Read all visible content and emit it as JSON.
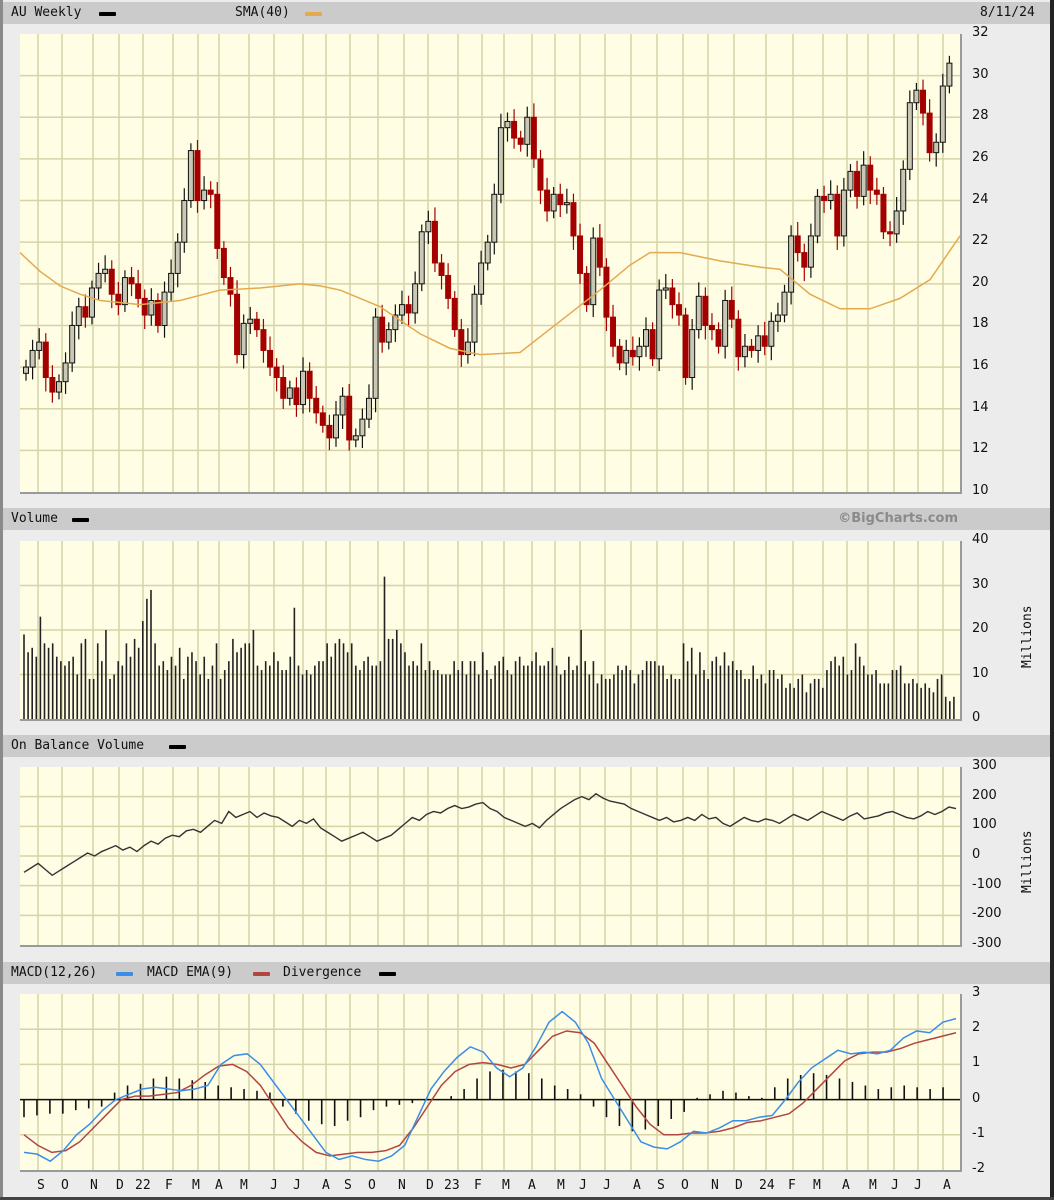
{
  "header": {
    "symbol_label": "AU Weekly",
    "sma_label": "SMA(40)",
    "date": "8/11/24",
    "volume_label": "Volume",
    "copyright": "©BigCharts.com",
    "obv_label": "On Balance Volume",
    "macd_label": "MACD(12,26)",
    "macd_ema_label": "MACD EMA(9)",
    "divergence_label": "Divergence"
  },
  "colors": {
    "plot_bg": "#fffde4",
    "grid": "#d6d4a6",
    "up_candle": "#c8c8b4",
    "down_candle": "#a50000",
    "sma": "#e3aa4f",
    "macd": "#3a8ee6",
    "macd_ema": "#b2453f",
    "divergence": "#000000",
    "header_bg": "#cbcbcb"
  },
  "axes": {
    "price_ticks": [
      "32",
      "30",
      "28",
      "26",
      "24",
      "22",
      "20",
      "18",
      "16",
      "14",
      "12",
      "10"
    ],
    "volume_ticks": [
      "40",
      "30",
      "20",
      "10",
      "0"
    ],
    "volume_unit": "Millions",
    "obv_ticks": [
      "300",
      "200",
      "100",
      "0",
      "-100",
      "-200",
      "-300"
    ],
    "obv_unit": "Millions",
    "macd_ticks": [
      "3",
      "2",
      "1",
      "0",
      "-1",
      "-2"
    ],
    "x_labels": [
      "S",
      "O",
      "N",
      "D",
      "22",
      "F",
      "M",
      "A",
      "M",
      "J",
      "J",
      "A",
      "S",
      "O",
      "N",
      "D",
      "23",
      "F",
      "M",
      "A",
      "M",
      "J",
      "J",
      "A",
      "S",
      "O",
      "N",
      "D",
      "24",
      "F",
      "M",
      "A",
      "M",
      "J",
      "J",
      "A"
    ]
  },
  "chart_data": [
    {
      "type": "candlestick",
      "title": "AU Weekly",
      "ylim": [
        10,
        32
      ],
      "grid": true,
      "legend": [
        "AU Weekly",
        "SMA(40)"
      ],
      "x_range": "Aug 2021 – Aug 2024 (weekly)",
      "close_series_approx": [
        16.0,
        16.8,
        17.2,
        15.5,
        14.8,
        15.3,
        16.2,
        18.0,
        18.9,
        18.4,
        19.8,
        20.5,
        20.7,
        19.5,
        19.0,
        20.3,
        20.0,
        19.3,
        18.5,
        19.2,
        18.0,
        19.6,
        20.5,
        22.0,
        24.0,
        26.4,
        24.0,
        24.5,
        24.3,
        21.7,
        20.3,
        19.5,
        16.6,
        18.1,
        18.3,
        17.8,
        16.8,
        16.0,
        15.5,
        14.5,
        15.0,
        14.2,
        15.8,
        14.5,
        13.8,
        13.2,
        12.6,
        13.7,
        14.6,
        12.5,
        12.7,
        13.5,
        14.5,
        18.4,
        17.2,
        17.8,
        18.5,
        19.0,
        18.6,
        20.0,
        22.5,
        23.0,
        21.0,
        20.4,
        19.3,
        17.8,
        16.6,
        17.2,
        19.5,
        21.0,
        22.0,
        24.3,
        27.5,
        27.8,
        27.0,
        26.7,
        28.0,
        26.0,
        24.5,
        23.5,
        24.3,
        23.8,
        23.9,
        22.3,
        20.5,
        19.0,
        22.2,
        20.8,
        18.4,
        17.0,
        16.2,
        16.8,
        16.5,
        17.0,
        17.8,
        16.4,
        19.7,
        19.8,
        19.0,
        18.5,
        15.5,
        17.8,
        19.4,
        18.0,
        17.8,
        17.0,
        19.2,
        18.3,
        16.5,
        17.0,
        16.8,
        17.5,
        17.0,
        18.2,
        18.5,
        19.6,
        22.3,
        21.5,
        20.8,
        22.3,
        24.2,
        24.0,
        24.3,
        22.3,
        24.5,
        25.4,
        24.2,
        25.7,
        24.5,
        24.3,
        22.5,
        22.4,
        23.5,
        25.5,
        28.7,
        29.3,
        28.2,
        26.3,
        26.8,
        29.5,
        30.6
      ],
      "sma40_approx_points": [
        [
          0,
          21.5
        ],
        [
          20,
          20.6
        ],
        [
          40,
          19.9
        ],
        [
          60,
          19.5
        ],
        [
          80,
          19.2
        ],
        [
          120,
          19.0
        ],
        [
          160,
          19.2
        ],
        [
          200,
          19.7
        ],
        [
          240,
          19.8
        ],
        [
          280,
          20.0
        ],
        [
          300,
          19.9
        ],
        [
          320,
          19.7
        ],
        [
          360,
          18.9
        ],
        [
          400,
          17.6
        ],
        [
          430,
          16.9
        ],
        [
          460,
          16.6
        ],
        [
          500,
          16.7
        ],
        [
          540,
          18.2
        ],
        [
          580,
          19.7
        ],
        [
          610,
          20.9
        ],
        [
          630,
          21.5
        ],
        [
          660,
          21.5
        ],
        [
          700,
          21.1
        ],
        [
          740,
          20.8
        ],
        [
          760,
          20.7
        ],
        [
          790,
          19.5
        ],
        [
          820,
          18.8
        ],
        [
          850,
          18.8
        ],
        [
          880,
          19.3
        ],
        [
          910,
          20.2
        ],
        [
          940,
          22.3
        ]
      ]
    },
    {
      "type": "bar",
      "title": "Volume",
      "ylabel": "Millions",
      "ylim": [
        0,
        40
      ],
      "values_approx": [
        19,
        15,
        16,
        14,
        23,
        17,
        16,
        17,
        14,
        13,
        12,
        13,
        14,
        10,
        17,
        18,
        9,
        9,
        17,
        13,
        20,
        9,
        10,
        13,
        12,
        17,
        14,
        18,
        16,
        22,
        27,
        29,
        17,
        12,
        13,
        11,
        14,
        12,
        16,
        9,
        14,
        15,
        13,
        10,
        14,
        9,
        12,
        17,
        9,
        11,
        13,
        18,
        15,
        16,
        17,
        17,
        20,
        12,
        11,
        13,
        12,
        15,
        13,
        11,
        11,
        14,
        25,
        12,
        10,
        11,
        10,
        12,
        13,
        13,
        17,
        14,
        17,
        18,
        17,
        15,
        17,
        12,
        11,
        13,
        14,
        12,
        12,
        13,
        32,
        18,
        18,
        20,
        17,
        15,
        12,
        13,
        12,
        17,
        11,
        13,
        11,
        11,
        10,
        10,
        10,
        13,
        11,
        13,
        10,
        13,
        13,
        10,
        15,
        11,
        9,
        12,
        13,
        14,
        11,
        10,
        13,
        14,
        12,
        12,
        13,
        15,
        12,
        12,
        13,
        16,
        12,
        10,
        11,
        14,
        11,
        12,
        20,
        13,
        10,
        13,
        8,
        10,
        9,
        9,
        10,
        12,
        11,
        12,
        11,
        8,
        10,
        11,
        13,
        13,
        13,
        12,
        12,
        9,
        10,
        9,
        9,
        17,
        13,
        16,
        10,
        15,
        11,
        9,
        13,
        14,
        12,
        15,
        12,
        13,
        11,
        11,
        9,
        9,
        12,
        9,
        10,
        8,
        11,
        11,
        9,
        10,
        7,
        8,
        7,
        9,
        10,
        6,
        8,
        9,
        9,
        7,
        11,
        13,
        14,
        12,
        14,
        10,
        11,
        17,
        14,
        12,
        10,
        10,
        11,
        8,
        8,
        8,
        11,
        11,
        12,
        8,
        8,
        9,
        8,
        7,
        8,
        7,
        6,
        9,
        10,
        5,
        4,
        5
      ]
    },
    {
      "type": "line",
      "title": "On Balance Volume",
      "ylabel": "Millions",
      "ylim": [
        -300,
        300
      ],
      "values_approx": [
        -55,
        -40,
        -25,
        -45,
        -65,
        -50,
        -35,
        -20,
        -5,
        10,
        0,
        15,
        25,
        35,
        20,
        30,
        15,
        35,
        50,
        40,
        60,
        70,
        65,
        85,
        90,
        80,
        100,
        120,
        110,
        150,
        130,
        140,
        150,
        130,
        145,
        135,
        130,
        115,
        100,
        120,
        110,
        125,
        95,
        80,
        65,
        50,
        60,
        70,
        80,
        65,
        50,
        60,
        70,
        90,
        110,
        130,
        120,
        140,
        150,
        145,
        160,
        170,
        160,
        165,
        175,
        180,
        160,
        150,
        130,
        120,
        110,
        100,
        110,
        95,
        120,
        140,
        160,
        175,
        190,
        200,
        190,
        210,
        195,
        185,
        180,
        175,
        160,
        150,
        140,
        130,
        120,
        130,
        115,
        120,
        130,
        120,
        140,
        125,
        130,
        110,
        100,
        115,
        130,
        120,
        115,
        125,
        120,
        110,
        125,
        140,
        130,
        120,
        135,
        150,
        140,
        130,
        120,
        135,
        145,
        125,
        130,
        135,
        145,
        150,
        140,
        130,
        125,
        135,
        150,
        140,
        150,
        165,
        160
      ],
      "legend": [
        "On Balance Volume"
      ]
    },
    {
      "type": "line",
      "title": "MACD(12,26) / MACD EMA(9) / Divergence",
      "ylim": [
        -2,
        3
      ],
      "series": [
        {
          "name": "MACD(12,26)",
          "color": "#3a8ee6",
          "values_approx": [
            -1.5,
            -1.55,
            -1.75,
            -1.45,
            -1.0,
            -0.7,
            -0.3,
            0.0,
            0.15,
            0.3,
            0.35,
            0.3,
            0.25,
            0.3,
            0.4,
            1.0,
            1.25,
            1.3,
            1.0,
            0.5,
            0.0,
            -0.5,
            -1.0,
            -1.5,
            -1.7,
            -1.6,
            -1.7,
            -1.75,
            -1.6,
            -1.3,
            -0.5,
            0.3,
            0.8,
            1.2,
            1.5,
            1.35,
            0.9,
            0.65,
            0.9,
            1.5,
            2.2,
            2.5,
            2.2,
            1.6,
            0.6,
            0.0,
            -0.6,
            -1.2,
            -1.35,
            -1.4,
            -1.2,
            -0.9,
            -0.95,
            -0.8,
            -0.6,
            -0.6,
            -0.5,
            -0.45,
            0.0,
            0.5,
            0.9,
            1.15,
            1.4,
            1.3,
            1.35,
            1.3,
            1.4,
            1.75,
            1.95,
            1.9,
            2.2,
            2.3
          ]
        },
        {
          "name": "MACD EMA(9)",
          "color": "#b2453f",
          "values_approx": [
            -1.0,
            -1.3,
            -1.5,
            -1.45,
            -1.2,
            -0.8,
            -0.4,
            0.0,
            0.1,
            0.1,
            0.15,
            0.2,
            0.4,
            0.7,
            0.95,
            1.0,
            0.8,
            0.4,
            -0.2,
            -0.8,
            -1.2,
            -1.5,
            -1.6,
            -1.55,
            -1.5,
            -1.5,
            -1.45,
            -1.3,
            -0.8,
            -0.2,
            0.4,
            0.8,
            1.0,
            1.05,
            1.0,
            0.9,
            1.0,
            1.4,
            1.8,
            1.95,
            1.9,
            1.6,
            1.0,
            0.4,
            -0.2,
            -0.7,
            -1.0,
            -1.0,
            -0.95,
            -0.95,
            -0.9,
            -0.8,
            -0.65,
            -0.6,
            -0.5,
            -0.4,
            -0.1,
            0.3,
            0.7,
            1.1,
            1.3,
            1.35,
            1.35,
            1.45,
            1.6,
            1.7,
            1.8,
            1.9
          ]
        },
        {
          "name": "Divergence",
          "color": "#000000",
          "type": "bar",
          "values_approx": [
            -0.5,
            -0.45,
            -0.4,
            -0.4,
            -0.3,
            -0.25,
            -0.2,
            0.2,
            0.4,
            0.45,
            0.6,
            0.65,
            0.6,
            0.55,
            0.5,
            0.4,
            0.35,
            0.3,
            0.25,
            0.2,
            -0.2,
            -0.4,
            -0.6,
            -0.7,
            -0.75,
            -0.6,
            -0.5,
            -0.3,
            -0.2,
            -0.15,
            -0.1,
            -0.05,
            0.0,
            0.1,
            0.3,
            0.6,
            0.8,
            0.85,
            0.8,
            0.75,
            0.6,
            0.4,
            0.3,
            0.15,
            -0.2,
            -0.5,
            -0.75,
            -0.9,
            -0.85,
            -0.75,
            -0.55,
            -0.35,
            0.05,
            0.15,
            0.25,
            0.2,
            0.1,
            0.05,
            0.35,
            0.6,
            0.7,
            0.75,
            0.7,
            0.6,
            0.5,
            0.4,
            0.3,
            0.35,
            0.4,
            0.35,
            0.3,
            0.35
          ]
        }
      ]
    }
  ]
}
